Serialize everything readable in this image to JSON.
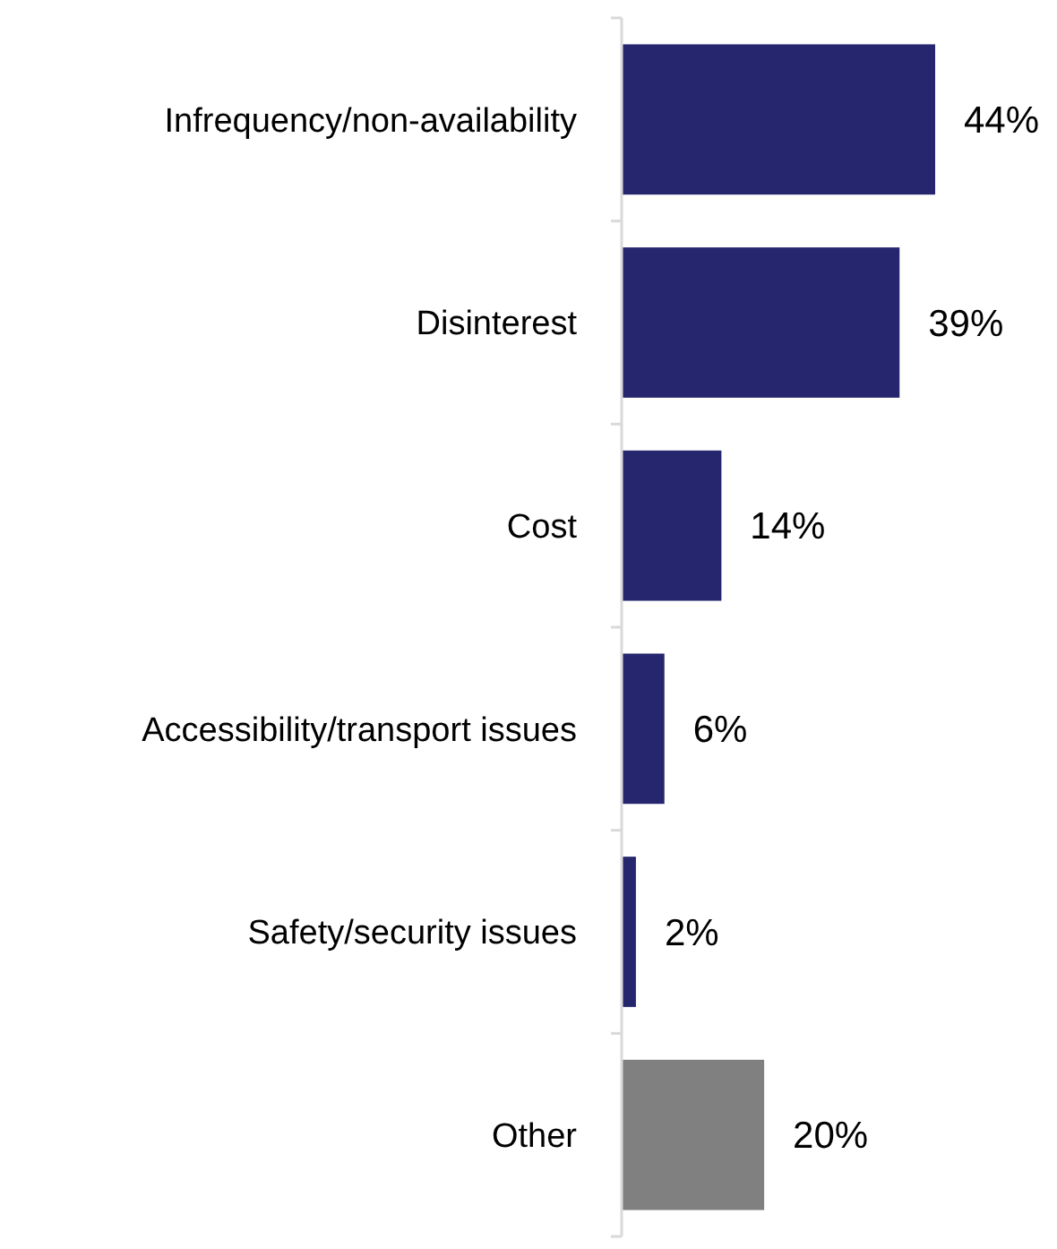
{
  "chart_data": {
    "type": "bar",
    "orientation": "horizontal",
    "categories": [
      "Infrequency/non-availability",
      "Disinterest",
      "Cost",
      "Accessibility/transport issues",
      "Safety/security issues",
      "Other"
    ],
    "values": [
      44,
      39,
      14,
      6,
      2,
      20
    ],
    "colors": [
      "#26266e",
      "#26266e",
      "#26266e",
      "#26266e",
      "#26266e",
      "#808080"
    ],
    "value_labels": [
      "44%",
      "39%",
      "14%",
      "6%",
      "2%",
      "20%"
    ],
    "grid": false
  }
}
